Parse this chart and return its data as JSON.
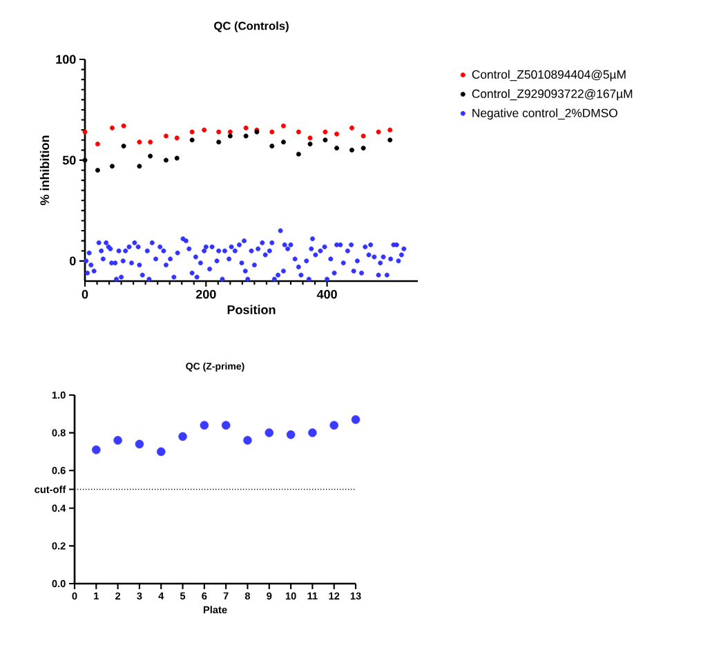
{
  "chart_data": [
    {
      "type": "scatter",
      "title": "QC (Controls)",
      "xlabel": "Position",
      "ylabel": "% inhibition",
      "xlim": [
        0,
        550
      ],
      "xticks": [
        0,
        200,
        400
      ],
      "ylim": [
        -10,
        100
      ],
      "yticks": [
        0,
        50,
        100
      ],
      "legend": "right",
      "marker": "circle",
      "series": [
        {
          "name": "Control_Z5010894404@5µM",
          "color": "#ff0000",
          "x": [
            0,
            21,
            45,
            64,
            90,
            108,
            134,
            152,
            177,
            197,
            221,
            240,
            266,
            284,
            309,
            328,
            353,
            372,
            397,
            416,
            441,
            460,
            485,
            504
          ],
          "values": [
            64,
            58,
            66,
            67,
            59,
            59,
            62,
            61,
            64,
            65,
            64,
            64,
            66,
            65,
            64,
            67,
            64,
            61,
            64,
            63,
            66,
            62,
            64,
            65
          ]
        },
        {
          "name": "Control_Z929093722@167µM",
          "color": "#000000",
          "x": [
            0,
            21,
            45,
            64,
            90,
            108,
            134,
            152,
            177,
            221,
            240,
            266,
            284,
            309,
            328,
            353,
            372,
            397,
            416,
            441,
            460,
            504
          ],
          "values": [
            50,
            45,
            47,
            57,
            47,
            52,
            50,
            51,
            60,
            59,
            62,
            62,
            64,
            57,
            59,
            53,
            58,
            60,
            56,
            55,
            56,
            60
          ]
        },
        {
          "name": "Negative control_2%DMSO",
          "color": "#3333ff",
          "x": [
            2,
            4,
            7,
            10,
            15,
            23,
            27,
            30,
            35,
            39,
            42,
            44,
            50,
            52,
            56,
            60,
            63,
            67,
            73,
            77,
            82,
            88,
            90,
            95,
            103,
            106,
            111,
            117,
            124,
            130,
            134,
            141,
            147,
            153,
            162,
            167,
            172,
            177,
            183,
            185,
            191,
            197,
            200,
            206,
            210,
            218,
            221,
            227,
            231,
            238,
            242,
            248,
            255,
            259,
            263,
            265,
            269,
            275,
            280,
            286,
            293,
            298,
            305,
            309,
            313,
            319,
            323,
            328,
            330,
            335,
            340,
            347,
            353,
            357,
            366,
            370,
            374,
            376,
            381,
            389,
            396,
            400,
            406,
            412,
            416,
            422,
            427,
            434,
            440,
            444,
            450,
            457,
            463,
            469,
            472,
            478,
            485,
            488,
            493,
            499,
            505,
            510,
            515,
            518,
            523,
            527
          ],
          "values": [
            0,
            -6,
            4,
            -2,
            -5,
            9,
            5,
            1,
            9,
            7,
            6,
            -1,
            -1,
            -9,
            5,
            -8,
            0,
            5,
            7,
            -1,
            9,
            7,
            -2,
            -7,
            5,
            -9,
            9,
            1,
            7,
            5,
            -2,
            1,
            -8,
            4,
            11,
            10,
            6,
            -6,
            2,
            -8,
            -1,
            5,
            7,
            -4,
            7,
            0,
            5,
            -9,
            5,
            1,
            7,
            5,
            8,
            -1,
            10,
            -5,
            -9,
            5,
            -2,
            6,
            9,
            3,
            5,
            9,
            -9,
            -7,
            15,
            -5,
            8,
            6,
            8,
            1,
            -3,
            -7,
            0,
            -9,
            6,
            11,
            3,
            5,
            7,
            -9,
            1,
            -6,
            8,
            8,
            -1,
            5,
            8,
            -5,
            0,
            -6,
            7,
            3,
            8,
            2,
            -7,
            -1,
            2,
            -7,
            1,
            8,
            8,
            0,
            3,
            6
          ]
        }
      ]
    },
    {
      "type": "scatter",
      "title": "QC (Z-prime)",
      "xlabel": "Plate",
      "xlim": [
        0,
        13
      ],
      "xticks": [
        0,
        1,
        2,
        3,
        4,
        5,
        6,
        7,
        8,
        9,
        10,
        11,
        12,
        13
      ],
      "ylim": [
        0,
        1
      ],
      "yticks": [
        {
          "value": 0,
          "label": "0.0"
        },
        0.2,
        0.4,
        {
          "value": 0.5,
          "label": "cut-off"
        },
        0.6,
        0.8,
        {
          "value": 1,
          "label": "1.0"
        }
      ],
      "marker": "circle",
      "ref_lines": [
        {
          "axis": "y",
          "value": 0.5,
          "line_style": "dotted"
        }
      ],
      "series": [
        {
          "color": "#3b3bff",
          "x": [
            1,
            2,
            3,
            4,
            5,
            6,
            7,
            8,
            9,
            10,
            11,
            12,
            13
          ],
          "values": [
            0.71,
            0.76,
            0.74,
            0.7,
            0.78,
            0.84,
            0.84,
            0.76,
            0.8,
            0.79,
            0.8,
            0.84,
            0.87
          ]
        }
      ]
    }
  ]
}
